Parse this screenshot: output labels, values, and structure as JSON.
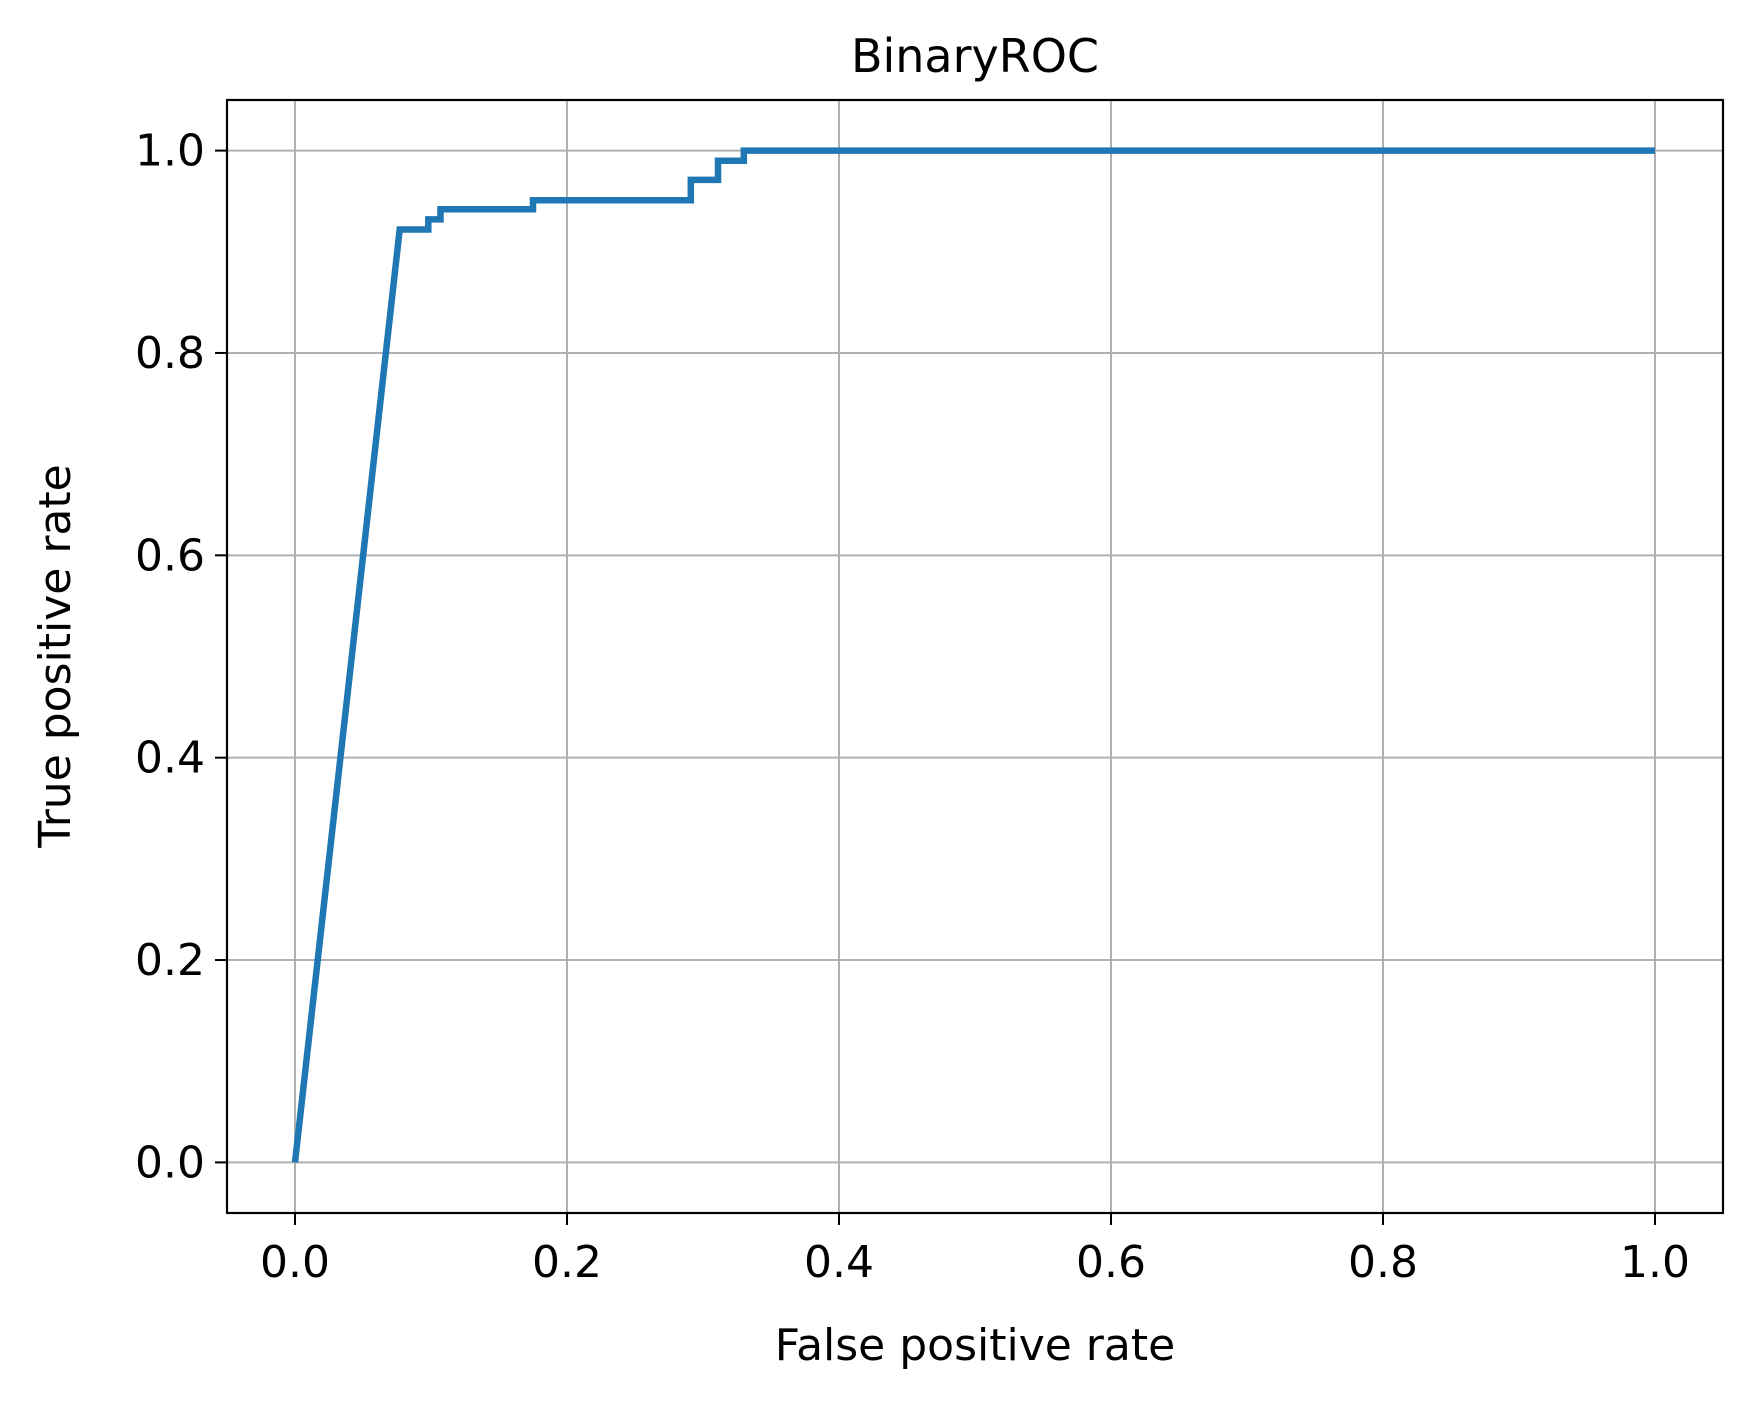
{
  "chart_data": {
    "type": "line",
    "title": "BinaryROC",
    "xlabel": "False positive rate",
    "ylabel": "True positive rate",
    "xlim": [
      -0.05,
      1.05
    ],
    "ylim": [
      -0.05,
      1.05
    ],
    "xticks": [
      0.0,
      0.2,
      0.4,
      0.6,
      0.8,
      1.0
    ],
    "yticks": [
      0.0,
      0.2,
      0.4,
      0.6,
      0.8,
      1.0
    ],
    "xtick_labels": [
      "0.0",
      "0.2",
      "0.4",
      "0.6",
      "0.8",
      "1.0"
    ],
    "ytick_labels": [
      "0.0",
      "0.2",
      "0.4",
      "0.6",
      "0.8",
      "1.0"
    ],
    "grid": true,
    "line_color": "#1f77b4",
    "grid_color": "#b0b0b0",
    "series": [
      {
        "x": [
          0.0,
          0.077,
          0.098,
          0.098,
          0.107,
          0.107,
          0.175,
          0.175,
          0.291,
          0.291,
          0.311,
          0.311,
          0.33,
          0.33,
          1.0
        ],
        "y": [
          0.0,
          0.922,
          0.922,
          0.932,
          0.932,
          0.942,
          0.942,
          0.951,
          0.951,
          0.971,
          0.971,
          0.99,
          0.99,
          1.0,
          1.0
        ]
      }
    ]
  }
}
